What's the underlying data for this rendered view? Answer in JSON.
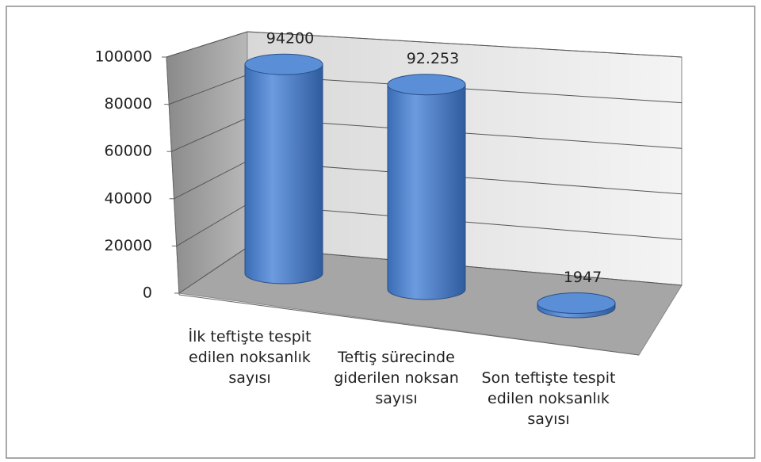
{
  "chart_data": {
    "type": "bar",
    "categories": [
      "İlk teftişte tespit edilen noksanlık sayısı",
      "Teftiş sürecinde giderilen noksan sayısı",
      "Son teftişte tespit edilen noksanlık sayısı"
    ],
    "values": [
      94200,
      92253,
      1947
    ],
    "value_labels": [
      "94200",
      "92.253",
      "1947"
    ],
    "color": "#4f81bd",
    "ylim": [
      0,
      100000
    ],
    "yticks": [
      0,
      20000,
      40000,
      60000,
      80000,
      100000
    ],
    "grid": true
  }
}
